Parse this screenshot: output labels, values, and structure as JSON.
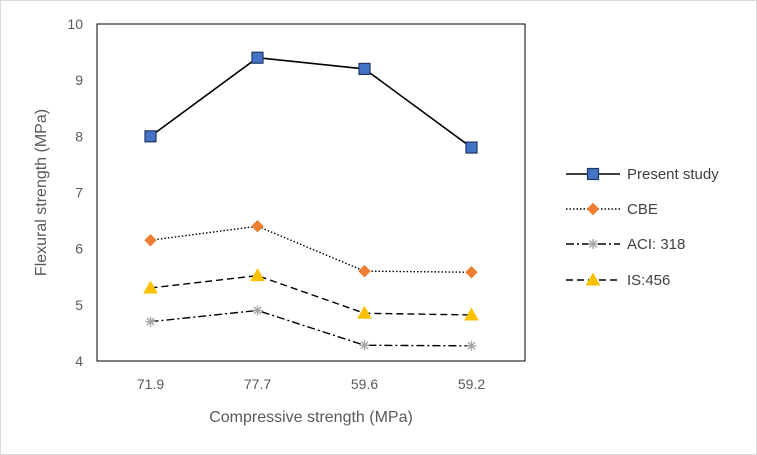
{
  "chart_data": {
    "type": "line",
    "title": "",
    "xlabel": "Compressive strength (MPa)",
    "ylabel": "Flexural strength (MPa)",
    "categories": [
      "71.9",
      "77.7",
      "59.6",
      "59.2"
    ],
    "ylim": [
      4,
      10
    ],
    "yticks": [
      4,
      5,
      6,
      7,
      8,
      9,
      10
    ],
    "grid": false,
    "legend_position": "right",
    "series": [
      {
        "name": "Present study",
        "values": [
          8.0,
          9.4,
          9.2,
          7.8
        ],
        "color": "#000000",
        "marker": "square",
        "marker_color": "#4472C4",
        "marker_edge": "#1F3864",
        "dash": "solid"
      },
      {
        "name": "CBE",
        "values": [
          6.15,
          6.4,
          5.6,
          5.58
        ],
        "color": "#000000",
        "marker": "diamond",
        "marker_color": "#ED7D31",
        "marker_edge": "#ED7D31",
        "dash": "dotted"
      },
      {
        "name": "ACI: 318",
        "values": [
          4.7,
          4.9,
          4.28,
          4.27
        ],
        "color": "#000000",
        "marker": "star",
        "marker_color": "#A5A5A5",
        "marker_edge": "#A5A5A5",
        "dash": "dashdot"
      },
      {
        "name": "IS:456",
        "values": [
          5.3,
          5.52,
          4.85,
          4.82
        ],
        "color": "#000000",
        "marker": "triangle",
        "marker_color": "#FFC000",
        "marker_edge": "#FFC000",
        "dash": "dashed"
      }
    ]
  }
}
